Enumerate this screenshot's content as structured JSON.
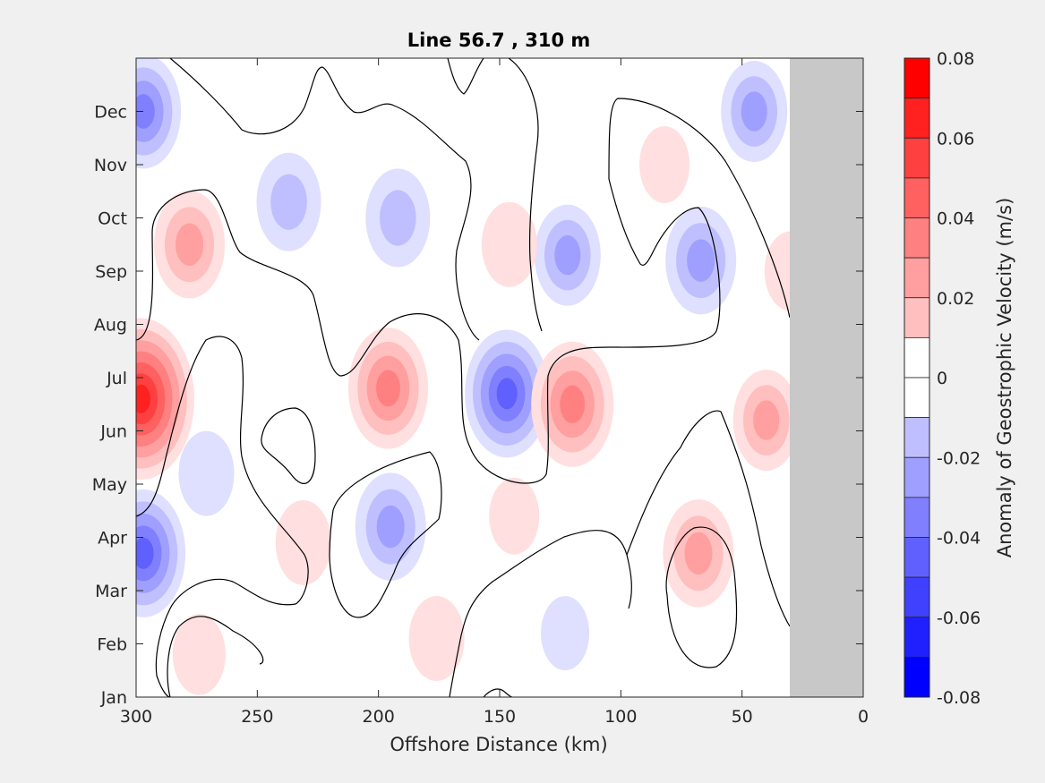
{
  "chart_data": {
    "type": "heatmap",
    "title": "Line 56.7 , 310 m",
    "xlabel": "Offshore Distance (km)",
    "ylabel": "",
    "x_ticks": [
      300,
      250,
      200,
      150,
      100,
      50,
      0
    ],
    "xlim": [
      300,
      0
    ],
    "y_ticks": [
      "Jan",
      "Feb",
      "Mar",
      "Apr",
      "May",
      "Jun",
      "Jul",
      "Aug",
      "Sep",
      "Oct",
      "Nov",
      "Dec"
    ],
    "colorbar": {
      "label": "Anomaly of Geostrophic Velocity (m/s)",
      "ticks": [
        "0.08",
        "0.06",
        "0.04",
        "0.02",
        "0",
        "-0.02",
        "-0.04",
        "-0.06",
        "-0.08"
      ],
      "range": [
        -0.08,
        0.08
      ],
      "levels": 16,
      "positive_color": "#ff0000",
      "negative_color": "#0000ff"
    },
    "land_mask_color": "#c8c8c8",
    "land_mask_start_km": 30,
    "contour_level": 0,
    "features": [
      {
        "x_km": 298,
        "month": 5.6,
        "value": 0.075
      },
      {
        "x_km": 278,
        "month": 8.5,
        "value": 0.035
      },
      {
        "x_km": 297,
        "month": 2.7,
        "value": -0.05
      },
      {
        "x_km": 297,
        "month": 11.0,
        "value": -0.04
      },
      {
        "x_km": 237,
        "month": 9.3,
        "value": -0.028
      },
      {
        "x_km": 192,
        "month": 9.0,
        "value": -0.028
      },
      {
        "x_km": 196,
        "month": 5.8,
        "value": 0.045
      },
      {
        "x_km": 147,
        "month": 5.7,
        "value": -0.05
      },
      {
        "x_km": 120,
        "month": 5.5,
        "value": 0.048
      },
      {
        "x_km": 195,
        "month": 3.2,
        "value": -0.035
      },
      {
        "x_km": 231,
        "month": 2.9,
        "value": 0.018
      },
      {
        "x_km": 176,
        "month": 1.1,
        "value": 0.018
      },
      {
        "x_km": 274,
        "month": 0.8,
        "value": 0.015
      },
      {
        "x_km": 68,
        "month": 2.7,
        "value": 0.035
      },
      {
        "x_km": 67,
        "month": 8.2,
        "value": -0.035
      },
      {
        "x_km": 40,
        "month": 5.2,
        "value": 0.03
      },
      {
        "x_km": 45,
        "month": 11.0,
        "value": -0.03
      },
      {
        "x_km": 122,
        "month": 8.3,
        "value": -0.03
      },
      {
        "x_km": 146,
        "month": 8.5,
        "value": 0.018
      },
      {
        "x_km": 271,
        "month": 4.2,
        "value": -0.018
      },
      {
        "x_km": 144,
        "month": 3.4,
        "value": 0.012
      },
      {
        "x_km": 82,
        "month": 10.0,
        "value": 0.012
      },
      {
        "x_km": 123,
        "month": 1.2,
        "value": -0.01
      },
      {
        "x_km": 30,
        "month": 8.0,
        "value": 0.014
      }
    ]
  }
}
